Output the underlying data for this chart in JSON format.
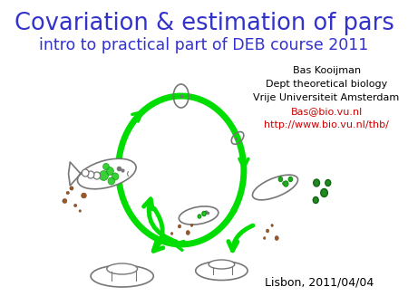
{
  "title_line1": "Covariation & estimation of pars",
  "title_line2": "intro to practical part of DEB course 2011",
  "title_color": "#3333cc",
  "subtitle_color": "#3333cc",
  "author_lines": [
    "Bas Kooijman",
    "Dept theoretical biology",
    "Vrije Universiteit Amsterdam"
  ],
  "author_color": "#000000",
  "email": "Bas@bio.vu.nl",
  "url": "http://www.bio.vu.nl/thb/",
  "link_color": "#cc0000",
  "date": "Lisbon, 2011/04/04",
  "date_color": "#000000",
  "background_color": "#ffffff",
  "arrow_color": "#00dd00",
  "fig_width": 4.5,
  "fig_height": 3.38,
  "dpi": 100
}
